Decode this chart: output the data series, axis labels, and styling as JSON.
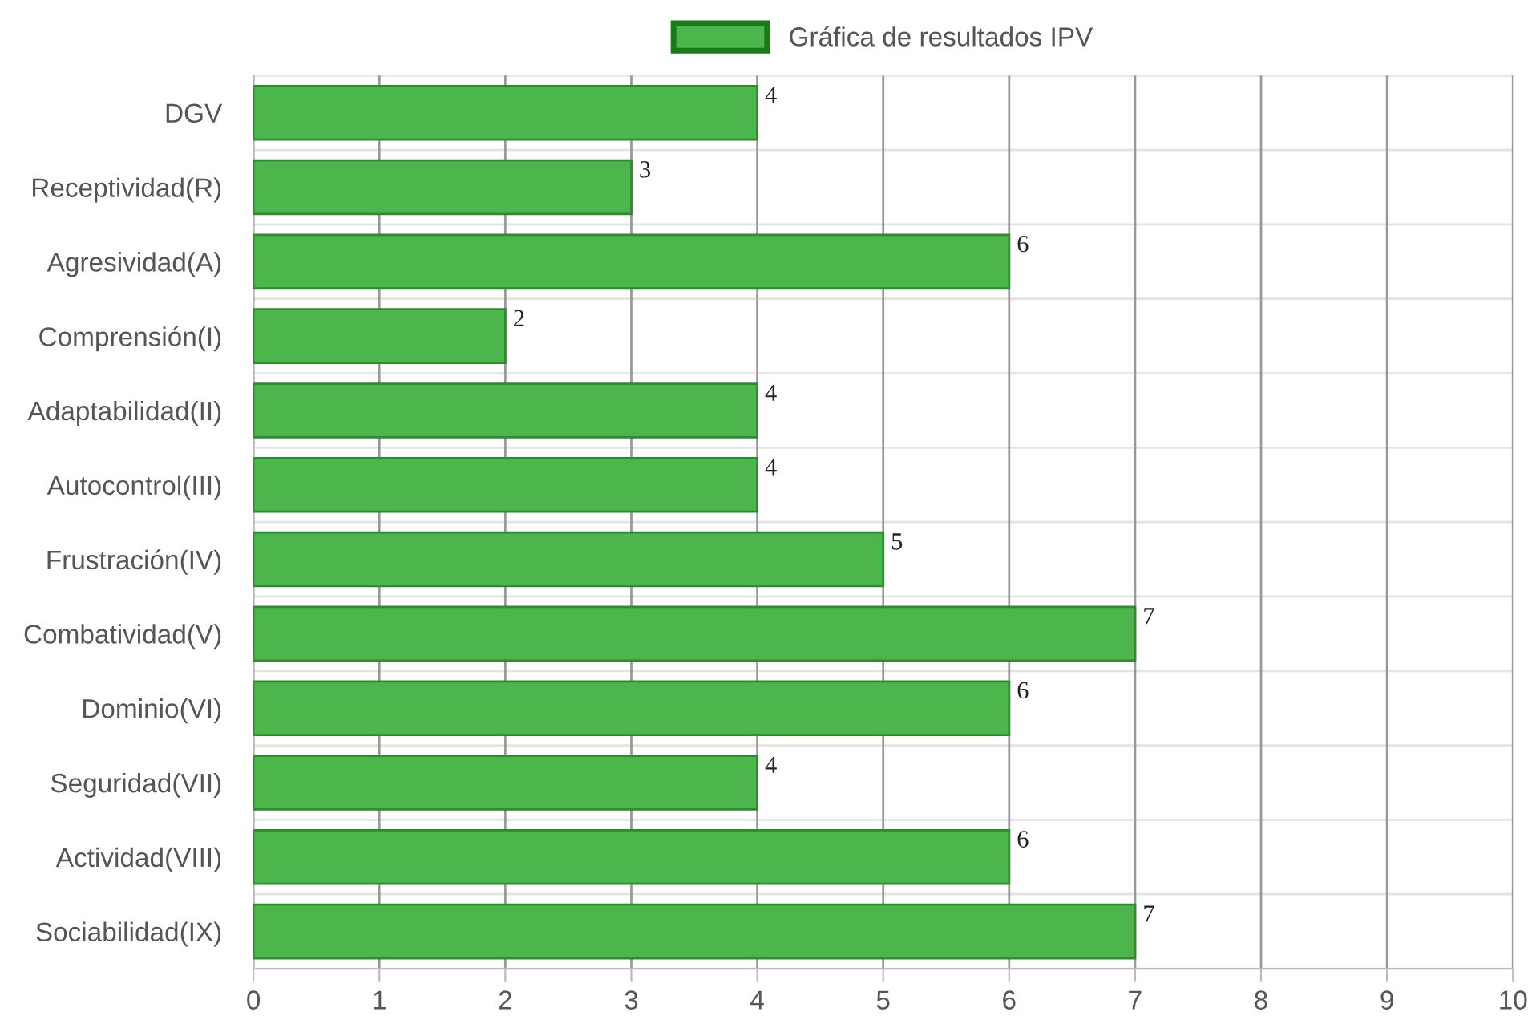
{
  "chart_data": {
    "type": "bar",
    "orientation": "horizontal",
    "categories": [
      "DGV",
      "Receptividad(R)",
      "Agresividad(A)",
      "Comprensión(I)",
      "Adaptabilidad(II)",
      "Autocontrol(III)",
      "Frustración(IV)",
      "Combatividad(V)",
      "Dominio(VI)",
      "Seguridad(VII)",
      "Actividad(VIII)",
      "Sociabilidad(IX)"
    ],
    "series": [
      {
        "name": "Gráfica de resultados IPV",
        "color": "#4cb54c",
        "values": [
          4,
          3,
          6,
          2,
          4,
          4,
          5,
          7,
          6,
          4,
          6,
          7
        ]
      }
    ],
    "xlim": [
      0,
      10
    ],
    "xticks": [
      0,
      1,
      2,
      3,
      4,
      5,
      6,
      7,
      8,
      9,
      10
    ],
    "grid": true,
    "legend": "top",
    "data_labels": true
  }
}
